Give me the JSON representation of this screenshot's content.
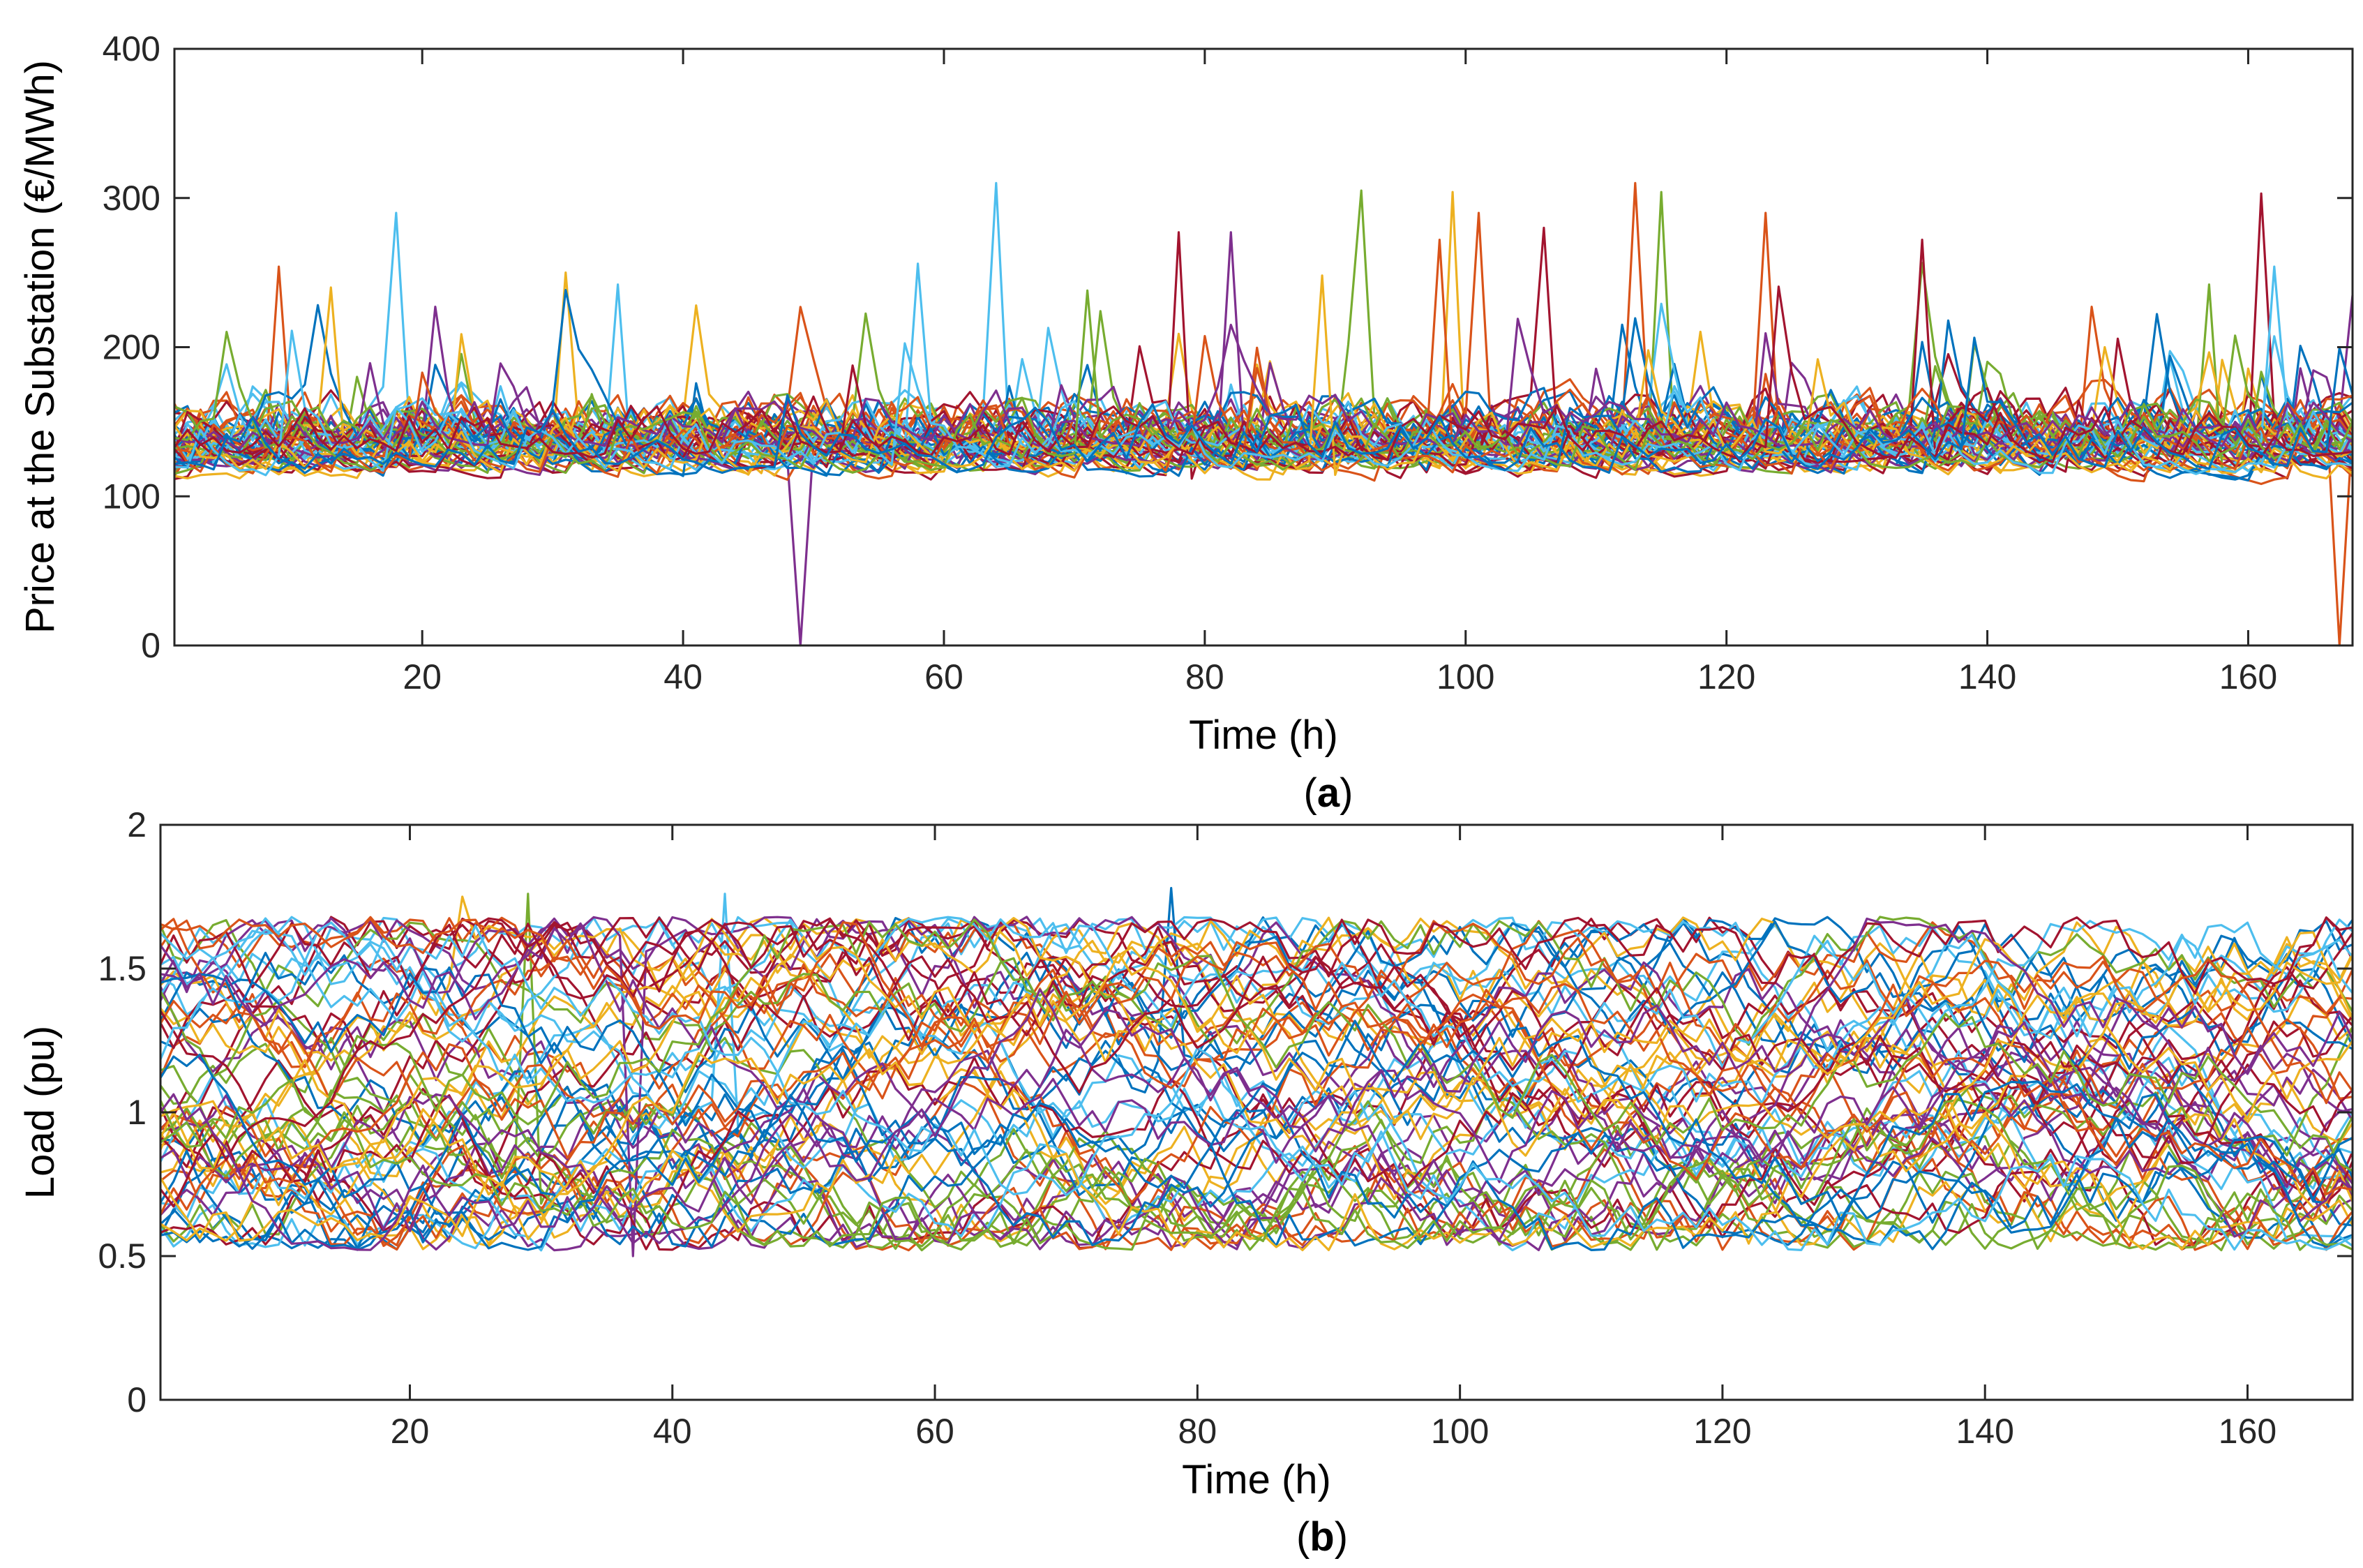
{
  "colors": [
    "#0072BD",
    "#D95319",
    "#EDB120",
    "#7E2F8E",
    "#77AC30",
    "#4DBEEE",
    "#A2142F"
  ],
  "chart_data": [
    {
      "id": "a",
      "type": "line",
      "caption_open": "(",
      "caption_letter": "a",
      "caption_close": ")",
      "xlabel": "Time (h)",
      "ylabel": "Price at the Substation (€/MWh)",
      "xlim": [
        1,
        168
      ],
      "ylim": [
        0,
        400
      ],
      "xticks": [
        20,
        40,
        60,
        80,
        100,
        120,
        140,
        160
      ],
      "yticks": [
        0,
        100,
        200,
        300,
        400
      ],
      "xtick_labels": [
        "20",
        "40",
        "60",
        "80",
        "100",
        "120",
        "140",
        "160"
      ],
      "ytick_labels": [
        "0",
        "100",
        "200",
        "300",
        "400"
      ],
      "n_series": 50,
      "series_summary": "50 stochastic hourly price scenarios, base level about 110–160 €/MWh with random spikes up to about 310 €/MWh",
      "base_range": [
        110,
        160
      ],
      "spikes": [
        {
          "series": 3,
          "x": 49,
          "y": 0
        },
        {
          "series": 12,
          "x": 64,
          "y": 310
        },
        {
          "series": 8,
          "x": 113,
          "y": 310
        },
        {
          "series": 4,
          "x": 115,
          "y": 304
        },
        {
          "series": 18,
          "x": 92,
          "y": 305
        },
        {
          "series": 2,
          "x": 99,
          "y": 304
        },
        {
          "series": 20,
          "x": 161,
          "y": 303
        },
        {
          "series": 5,
          "x": 18,
          "y": 290
        },
        {
          "series": 22,
          "x": 101,
          "y": 290
        },
        {
          "series": 29,
          "x": 123,
          "y": 290
        },
        {
          "series": 13,
          "x": 78,
          "y": 277
        },
        {
          "series": 31,
          "x": 82,
          "y": 277
        },
        {
          "series": 27,
          "x": 106,
          "y": 280
        },
        {
          "series": 34,
          "x": 135,
          "y": 272
        },
        {
          "series": 36,
          "x": 98,
          "y": 272
        },
        {
          "series": 15,
          "x": 9,
          "y": 254
        },
        {
          "series": 40,
          "x": 162,
          "y": 254
        },
        {
          "series": 9,
          "x": 31,
          "y": 250
        },
        {
          "series": 44,
          "x": 89,
          "y": 248
        },
        {
          "series": 25,
          "x": 157,
          "y": 242
        },
        {
          "series": 26,
          "x": 35,
          "y": 242
        },
        {
          "series": 1,
          "x": 167,
          "y": 0
        },
        {
          "series": 33,
          "x": 58,
          "y": 256
        },
        {
          "series": 37,
          "x": 13,
          "y": 240
        },
        {
          "series": 46,
          "x": 71,
          "y": 238
        }
      ]
    },
    {
      "id": "b",
      "type": "line",
      "caption_open": "(",
      "caption_letter": "b",
      "caption_close": ")",
      "xlabel": "Time (h)",
      "ylabel": "Load (pu)",
      "xlim": [
        1,
        168
      ],
      "ylim": [
        0,
        2
      ],
      "xticks": [
        20,
        40,
        60,
        80,
        100,
        120,
        140,
        160
      ],
      "yticks": [
        0,
        0.5,
        1,
        1.5,
        2
      ],
      "xtick_labels": [
        "20",
        "40",
        "60",
        "80",
        "100",
        "120",
        "140",
        "160"
      ],
      "ytick_labels": [
        "0",
        "0.5",
        "1",
        "1.5",
        "2"
      ],
      "n_series": 60,
      "series_summary": "60 stochastic hourly load scenarios varying between about 0.5 and 1.75 pu",
      "range": [
        0.5,
        1.78
      ]
    }
  ]
}
